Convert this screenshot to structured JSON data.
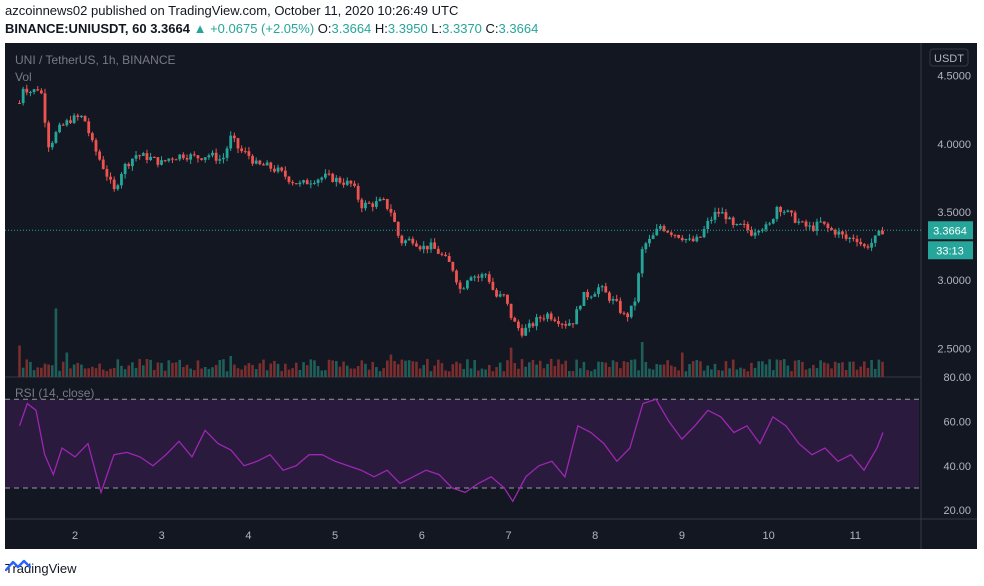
{
  "header": {
    "publisher_line": "azcoinnews02 published on TradingView.com, October 11, 2020 10:26:49 UTC",
    "symbol": "BINANCE:UNIUSDT, 60",
    "last": "3.3664",
    "change": "▲ +0.0675 (+2.05%)",
    "o_label": "O:",
    "o_value": "3.3664",
    "h_label": "H:",
    "h_value": "3.3950",
    "l_label": "L:",
    "l_value": "3.3370",
    "c_label": "C:",
    "c_value": "3.3664"
  },
  "footer": {
    "brand": "TradingView"
  },
  "colors": {
    "background": "#131722",
    "up": "#26a69a",
    "down": "#ef5350",
    "rsi_line": "#9c27b0",
    "rsi_band": "#2a1a3e",
    "text": "#787b86"
  },
  "chart_data": [
    {
      "type": "candlestick",
      "title": "UNI / TetherUS, 1h, BINANCE",
      "volume_label": "Vol",
      "currency_label": "USDT",
      "current_price_label": "3.3664",
      "countdown_label": "33:13",
      "x_ticks": [
        "2",
        "3",
        "4",
        "5",
        "6",
        "7",
        "8",
        "9",
        "10",
        "11"
      ],
      "y_ticks": [
        "4.5000",
        "4.0000",
        "3.5000",
        "3.0000",
        "2.5000"
      ],
      "y_tick_values": [
        4.5,
        4.0,
        3.5,
        3.0,
        2.5
      ],
      "ylim": [
        2.29,
        4.74
      ],
      "current_price": 3.3664,
      "close_path": [
        [
          1.36,
          4.3
        ],
        [
          1.4,
          4.42
        ],
        [
          1.5,
          4.38
        ],
        [
          1.6,
          4.42
        ],
        [
          1.65,
          4.2
        ],
        [
          1.7,
          3.98
        ],
        [
          1.8,
          4.1
        ],
        [
          1.95,
          4.18
        ],
        [
          2.1,
          4.2
        ],
        [
          2.2,
          4.0
        ],
        [
          2.35,
          3.8
        ],
        [
          2.45,
          3.65
        ],
        [
          2.55,
          3.82
        ],
        [
          2.7,
          3.92
        ],
        [
          2.85,
          3.9
        ],
        [
          3.0,
          3.86
        ],
        [
          3.1,
          3.9
        ],
        [
          3.25,
          3.92
        ],
        [
          3.4,
          3.9
        ],
        [
          3.55,
          3.92
        ],
        [
          3.7,
          3.88
        ],
        [
          3.8,
          4.05
        ],
        [
          3.9,
          3.95
        ],
        [
          4.0,
          3.92
        ],
        [
          4.1,
          3.84
        ],
        [
          4.2,
          3.84
        ],
        [
          4.35,
          3.8
        ],
        [
          4.5,
          3.73
        ],
        [
          4.6,
          3.7
        ],
        [
          4.75,
          3.74
        ],
        [
          4.9,
          3.76
        ],
        [
          5.1,
          3.72
        ],
        [
          5.2,
          3.7
        ],
        [
          5.3,
          3.55
        ],
        [
          5.45,
          3.56
        ],
        [
          5.55,
          3.58
        ],
        [
          5.65,
          3.5
        ],
        [
          5.75,
          3.28
        ],
        [
          5.9,
          3.3
        ],
        [
          6.0,
          3.24
        ],
        [
          6.1,
          3.25
        ],
        [
          6.2,
          3.2
        ],
        [
          6.35,
          3.1
        ],
        [
          6.45,
          2.92
        ],
        [
          6.55,
          3.05
        ],
        [
          6.65,
          3.02
        ],
        [
          6.75,
          3.05
        ],
        [
          6.85,
          2.88
        ],
        [
          6.95,
          2.88
        ],
        [
          7.05,
          2.7
        ],
        [
          7.15,
          2.62
        ],
        [
          7.25,
          2.66
        ],
        [
          7.35,
          2.72
        ],
        [
          7.45,
          2.75
        ],
        [
          7.55,
          2.72
        ],
        [
          7.65,
          2.68
        ],
        [
          7.75,
          2.7
        ],
        [
          7.85,
          2.88
        ],
        [
          7.95,
          2.9
        ],
        [
          8.05,
          2.95
        ],
        [
          8.15,
          2.88
        ],
        [
          8.25,
          2.82
        ],
        [
          8.35,
          2.72
        ],
        [
          8.45,
          2.82
        ],
        [
          8.55,
          3.25
        ],
        [
          8.65,
          3.3
        ],
        [
          8.75,
          3.4
        ],
        [
          8.85,
          3.36
        ],
        [
          9.0,
          3.32
        ],
        [
          9.1,
          3.28
        ],
        [
          9.2,
          3.3
        ],
        [
          9.3,
          3.42
        ],
        [
          9.4,
          3.5
        ],
        [
          9.5,
          3.48
        ],
        [
          9.6,
          3.38
        ],
        [
          9.7,
          3.4
        ],
        [
          9.8,
          3.35
        ],
        [
          9.9,
          3.4
        ],
        [
          10.0,
          3.38
        ],
        [
          10.1,
          3.55
        ],
        [
          10.2,
          3.5
        ],
        [
          10.3,
          3.45
        ],
        [
          10.4,
          3.4
        ],
        [
          10.5,
          3.38
        ],
        [
          10.6,
          3.42
        ],
        [
          10.7,
          3.37
        ],
        [
          10.8,
          3.35
        ],
        [
          10.9,
          3.3
        ],
        [
          11.0,
          3.32
        ],
        [
          11.1,
          3.24
        ],
        [
          11.2,
          3.28
        ],
        [
          11.32,
          3.37
        ]
      ],
      "volume_spikes": [
        [
          1.36,
          0.45
        ],
        [
          1.8,
          0.98
        ],
        [
          1.9,
          0.35
        ],
        [
          3.8,
          0.3
        ],
        [
          5.65,
          0.32
        ],
        [
          7.05,
          0.42
        ],
        [
          8.55,
          0.5
        ],
        [
          9.0,
          0.35
        ],
        [
          10.1,
          0.25
        ]
      ]
    },
    {
      "type": "line",
      "title": "RSI (14, close)",
      "y_ticks": [
        "80.00",
        "60.00",
        "40.00",
        "20.00"
      ],
      "y_tick_values": [
        80,
        60,
        40,
        20
      ],
      "ylim": [
        16,
        80
      ],
      "upper_band": 70,
      "lower_band": 30,
      "x": [
        1.36,
        1.45,
        1.55,
        1.65,
        1.75,
        1.85,
        2.0,
        2.15,
        2.3,
        2.45,
        2.6,
        2.75,
        2.9,
        3.05,
        3.2,
        3.35,
        3.5,
        3.65,
        3.8,
        3.95,
        4.1,
        4.25,
        4.4,
        4.55,
        4.7,
        4.85,
        5.0,
        5.15,
        5.3,
        5.45,
        5.6,
        5.75,
        5.9,
        6.05,
        6.2,
        6.35,
        6.5,
        6.65,
        6.8,
        6.95,
        7.05,
        7.2,
        7.35,
        7.5,
        7.65,
        7.8,
        7.95,
        8.1,
        8.25,
        8.4,
        8.55,
        8.7,
        8.85,
        9.0,
        9.15,
        9.3,
        9.45,
        9.6,
        9.75,
        9.9,
        10.05,
        10.2,
        10.35,
        10.5,
        10.65,
        10.8,
        10.95,
        11.1,
        11.25,
        11.32
      ],
      "values": [
        58,
        68,
        65,
        45,
        36,
        48,
        44,
        50,
        28,
        45,
        46,
        44,
        40,
        45,
        51,
        44,
        56,
        50,
        47,
        40,
        42,
        45,
        38,
        40,
        45,
        45,
        42,
        40,
        38,
        35,
        38,
        32,
        35,
        38,
        36,
        30,
        28,
        32,
        35,
        30,
        24,
        35,
        40,
        42,
        35,
        58,
        55,
        50,
        42,
        48,
        68,
        70,
        60,
        52,
        58,
        65,
        62,
        55,
        58,
        50,
        62,
        58,
        50,
        45,
        48,
        42,
        45,
        38,
        48,
        55
      ]
    }
  ]
}
